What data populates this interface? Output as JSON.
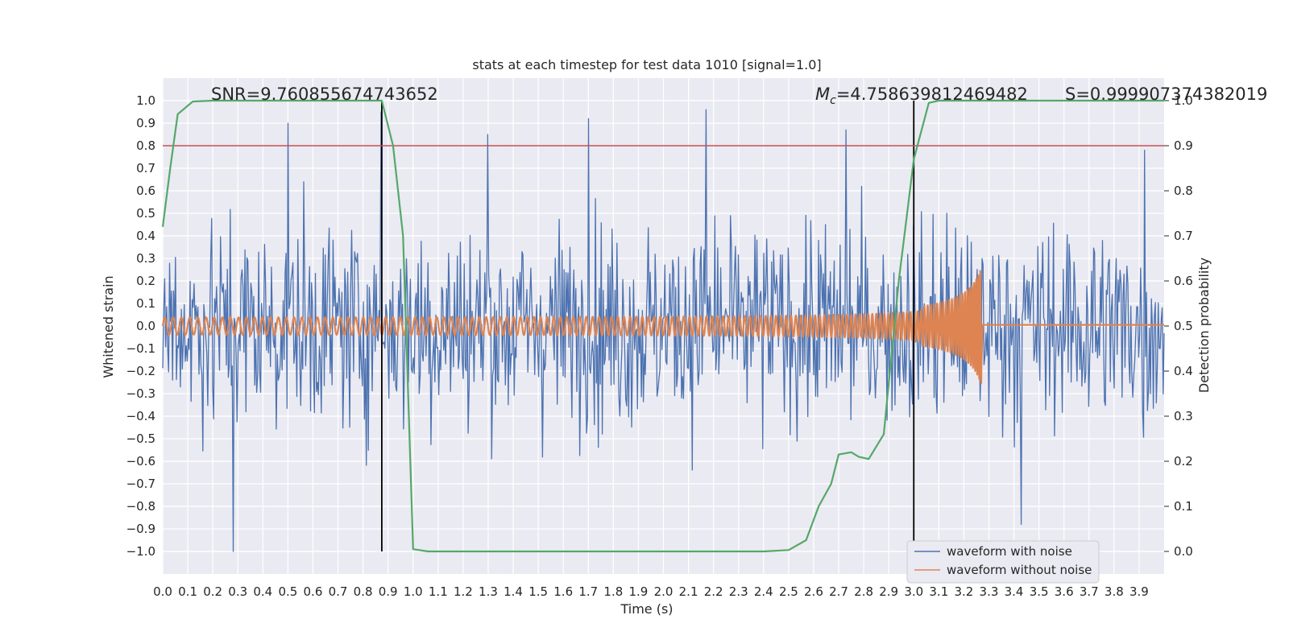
{
  "chart_data": {
    "type": "line",
    "title": "stats at each timestep for test data 1010 [signal=1.0]",
    "xlabel": "Time (s)",
    "ylabel": "Whitened strain",
    "y2label": "Detection probability",
    "xlim": [
      0.0,
      4.0
    ],
    "ylim": [
      -1.1,
      1.1
    ],
    "y2lim": [
      -0.05,
      1.05
    ],
    "x_ticks": [
      0.0,
      0.1,
      0.2,
      0.3,
      0.4,
      0.5,
      0.6,
      0.7,
      0.8,
      0.9,
      1.0,
      1.1,
      1.2,
      1.3,
      1.4,
      1.5,
      1.6,
      1.7,
      1.8,
      1.9,
      2.0,
      2.1,
      2.2,
      2.3,
      2.4,
      2.5,
      2.6,
      2.7,
      2.8,
      2.9,
      3.0,
      3.1,
      3.2,
      3.3,
      3.4,
      3.5,
      3.6,
      3.7,
      3.8,
      3.9
    ],
    "x_tick_labels": [
      "0.0",
      "0.1",
      "0.2",
      "0.3",
      "0.4",
      "0.5",
      "0.6",
      "0.7",
      "0.8",
      "0.9",
      "1.0",
      "1.1",
      "1.2",
      "1.3",
      "1.4",
      "1.5",
      "1.6",
      "1.7",
      "1.8",
      "1.9",
      "2.0",
      "2.1",
      "2.2",
      "2.3",
      "2.4",
      "2.5",
      "2.6",
      "2.7",
      "2.8",
      "2.9",
      "3.0",
      "3.1",
      "3.2",
      "3.3",
      "3.4",
      "3.5",
      "3.6",
      "3.7",
      "3.8",
      "3.9"
    ],
    "y_ticks": [
      1.0,
      0.9,
      0.8,
      0.7,
      0.6,
      0.5,
      0.4,
      0.3,
      0.2,
      0.1,
      0.0,
      -0.1,
      -0.2,
      -0.3,
      -0.4,
      -0.5,
      -0.6,
      -0.7,
      -0.8,
      -0.9,
      -1.0
    ],
    "y_tick_labels": [
      "1.0",
      "0.9",
      "0.8",
      "0.7",
      "0.6",
      "0.5",
      "0.4",
      "0.3",
      "0.2",
      "0.1",
      "0.0",
      "−0.1",
      "−0.2",
      "−0.3",
      "−0.4",
      "−0.5",
      "−0.6",
      "−0.7",
      "−0.8",
      "−0.9",
      "−1.0"
    ],
    "y2_ticks": [
      1.0,
      0.9,
      0.8,
      0.7,
      0.6,
      0.5,
      0.4,
      0.3,
      0.2,
      0.1,
      0.0
    ],
    "y2_tick_labels": [
      "1.0",
      "0.9",
      "0.8",
      "0.7",
      "0.6",
      "0.5",
      "0.4",
      "0.3",
      "0.2",
      "0.1",
      "0.0"
    ],
    "annotations": {
      "snr": "SNR=9.760855674743652",
      "mc_symbol": "M",
      "mc_sub": "c",
      "mc_value": "=4.758639812469482",
      "s": "S=0.999907374382019"
    },
    "vertical_lines": [
      0.875,
      3.0
    ],
    "threshold_line": {
      "axis": "y2",
      "value": 0.9
    },
    "noise_series": {
      "name": "waveform with noise",
      "x_range": [
        0.0,
        4.0
      ],
      "samples": 1024,
      "typical_envelope": 0.45,
      "extremes": [
        {
          "x": 0.28,
          "y": -1.0
        },
        {
          "x": 0.5,
          "y": 0.9
        },
        {
          "x": 0.87,
          "y": 0.95
        },
        {
          "x": 1.3,
          "y": 0.85
        },
        {
          "x": 1.7,
          "y": 0.92
        },
        {
          "x": 2.17,
          "y": 0.96
        },
        {
          "x": 2.73,
          "y": 0.87
        },
        {
          "x": 3.43,
          "y": -0.88
        },
        {
          "x": 3.92,
          "y": 0.78
        }
      ]
    },
    "chirp_series": {
      "name": "waveform without noise",
      "x_range": [
        0.0,
        3.27
      ],
      "amp_start": 0.035,
      "amp_end": 0.26,
      "freq_start_hz": 30,
      "merger_time": 3.27,
      "ringdown_level": 0.005
    },
    "probability_series": {
      "name": "detection probability",
      "x": [
        0.0,
        0.03,
        0.06,
        0.12,
        0.2,
        0.3,
        0.5,
        0.7,
        0.875,
        0.92,
        0.96,
        1.0,
        1.06,
        1.2,
        1.5,
        1.8,
        2.1,
        2.4,
        2.5,
        2.57,
        2.62,
        2.67,
        2.7,
        2.75,
        2.78,
        2.82,
        2.88,
        2.94,
        3.0,
        3.06,
        3.1,
        3.3,
        3.6,
        3.9,
        4.0
      ],
      "y": [
        0.72,
        0.85,
        0.97,
        0.998,
        1.0,
        1.0,
        1.0,
        1.0,
        1.0,
        0.9,
        0.7,
        0.005,
        0.0,
        0.0,
        0.0,
        0.0,
        0.0,
        0.0,
        0.003,
        0.025,
        0.1,
        0.15,
        0.215,
        0.22,
        0.21,
        0.205,
        0.26,
        0.6,
        0.87,
        0.995,
        1.0,
        1.0,
        1.0,
        1.0,
        1.0
      ]
    },
    "legend": {
      "placement": "lower-right",
      "entries": [
        {
          "label": "waveform with noise",
          "color": "#4c72b0"
        },
        {
          "label": "waveform without noise",
          "color": "#dd8452"
        }
      ]
    },
    "grid": true,
    "colors": {
      "background": "#eaeaf2",
      "grid": "#ffffff",
      "noise": "#4c72b0",
      "chirp": "#dd8452",
      "probability": "#55a868",
      "threshold": "#c44e52",
      "vline": "#000000"
    }
  }
}
